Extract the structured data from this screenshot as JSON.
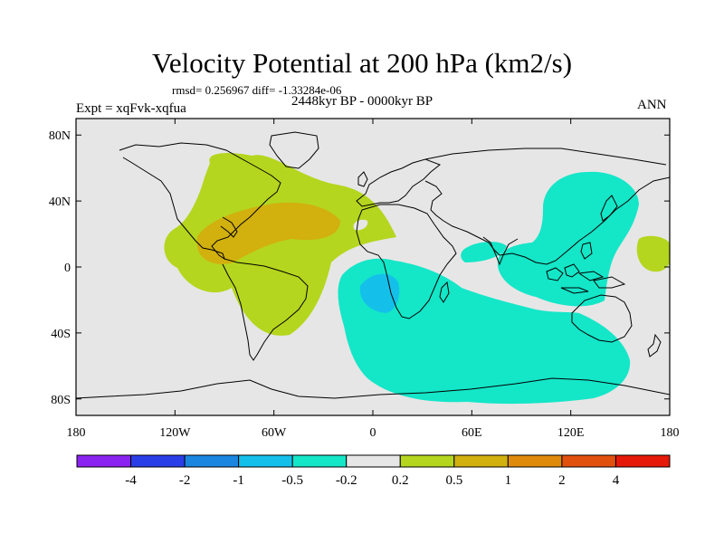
{
  "title": "Velocity Potential at 200 hPa (km2/s)",
  "stats_line": "rmsd= 0.256967 diff= -1.33284e-06",
  "expt_label": "Expt = xqFvk-xqfua",
  "period_label": "2448kyr BP - 0000kyr BP",
  "season_label": "ANN",
  "map": {
    "lon_range": [
      -180,
      180
    ],
    "lat_range": [
      -90,
      90
    ],
    "lat_ticks": [
      {
        "value": 80,
        "label": "80N"
      },
      {
        "value": 40,
        "label": "40N"
      },
      {
        "value": 0,
        "label": "0"
      },
      {
        "value": -40,
        "label": "40S"
      },
      {
        "value": -80,
        "label": "80S"
      }
    ],
    "lon_ticks": [
      {
        "value": -180,
        "label": "180"
      },
      {
        "value": -120,
        "label": "120W"
      },
      {
        "value": -60,
        "label": "60W"
      },
      {
        "value": 0,
        "label": "0"
      },
      {
        "value": 60,
        "label": "60E"
      },
      {
        "value": 120,
        "label": "120E"
      },
      {
        "value": 180,
        "label": "180"
      }
    ]
  },
  "colorbar": {
    "colors": [
      "#8b23f0",
      "#2a3ee8",
      "#1a86e0",
      "#14c0ea",
      "#14e6c8",
      "#e6e6e6",
      "#b4d61e",
      "#d2b00e",
      "#e08a0c",
      "#e2500e",
      "#e61808"
    ],
    "labels": [
      "-4",
      "-2",
      "-1",
      "-0.5",
      "-0.2",
      "0.2",
      "0.5",
      "1",
      "2",
      "4"
    ]
  },
  "regions": [
    {
      "name": "west-hemisphere-positive",
      "level": "0.2 to 0.5"
    },
    {
      "name": "caribbean-core",
      "level": "0.5 to 1"
    },
    {
      "name": "indian-ocean-negative",
      "level": "-0.5 to -0.2"
    },
    {
      "name": "west-pacific-negative",
      "level": "-0.5 to -0.2"
    },
    {
      "name": "south-atlantic-core",
      "level": "-1 to -0.5"
    },
    {
      "name": "central-pacific-positive",
      "level": "0.2 to 0.5"
    }
  ]
}
